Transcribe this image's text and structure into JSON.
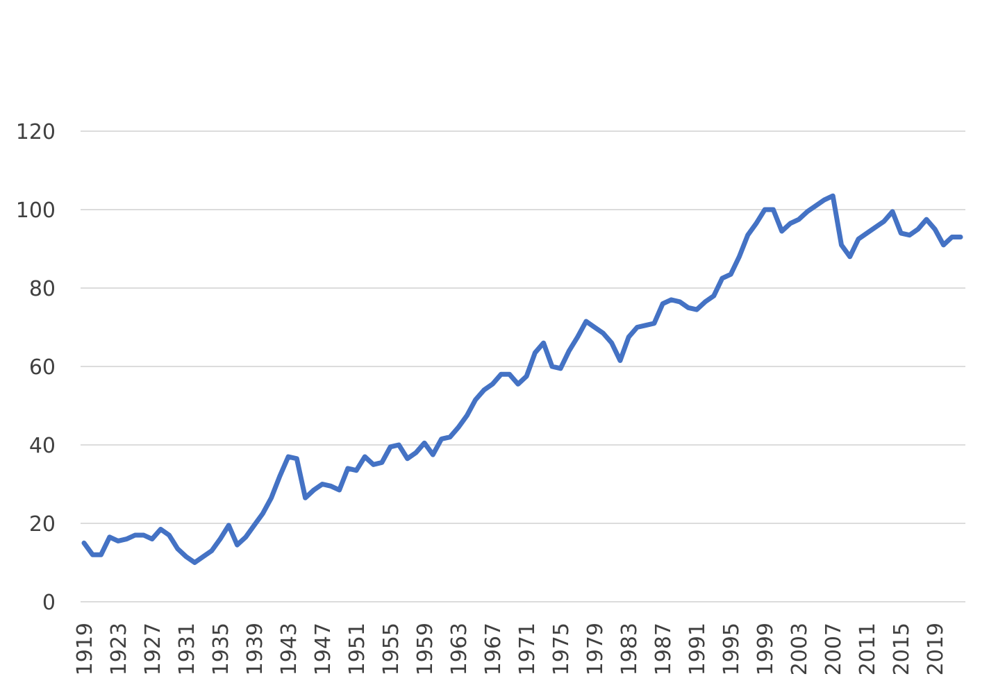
{
  "chart_data": {
    "type": "line",
    "title": "",
    "xlabel": "",
    "ylabel": "",
    "ylim": [
      0,
      120
    ],
    "yticks": [
      0,
      20,
      40,
      60,
      80,
      100,
      120
    ],
    "grid": true,
    "legend": "none",
    "colors": {
      "series": "#4472c4",
      "grid": "#c8c8c8",
      "text": "#404040"
    },
    "xtick_labels": [
      "1919",
      "1923",
      "1927",
      "1931",
      "1935",
      "1939",
      "1943",
      "1947",
      "1951",
      "1955",
      "1959",
      "1963",
      "1967",
      "1971",
      "1975",
      "1979",
      "1983",
      "1987",
      "1991",
      "1995",
      "1999",
      "2003",
      "2007",
      "2011",
      "2015",
      "2019"
    ],
    "x": [
      1919,
      1920,
      1921,
      1922,
      1923,
      1924,
      1925,
      1926,
      1927,
      1928,
      1929,
      1930,
      1931,
      1932,
      1933,
      1934,
      1935,
      1936,
      1937,
      1938,
      1939,
      1940,
      1941,
      1942,
      1943,
      1944,
      1945,
      1946,
      1947,
      1948,
      1949,
      1950,
      1951,
      1952,
      1953,
      1954,
      1955,
      1956,
      1957,
      1958,
      1959,
      1960,
      1961,
      1962,
      1963,
      1964,
      1965,
      1966,
      1967,
      1968,
      1969,
      1970,
      1971,
      1972,
      1973,
      1974,
      1975,
      1976,
      1977,
      1978,
      1979,
      1980,
      1981,
      1982,
      1983,
      1984,
      1985,
      1986,
      1987,
      1988,
      1989,
      1990,
      1991,
      1992,
      1993,
      1994,
      1995,
      1996,
      1997,
      1998,
      1999,
      2000,
      2001,
      2002,
      2003,
      2004,
      2005,
      2006,
      2007,
      2008,
      2009,
      2010,
      2011,
      2012,
      2013,
      2014,
      2015,
      2016,
      2017,
      2018,
      2019,
      2020,
      2021,
      2022
    ],
    "series": [
      {
        "values": [
          15,
          12,
          12,
          16.5,
          15.5,
          16,
          17,
          17,
          16,
          18.5,
          17,
          13.5,
          11.5,
          10,
          11.5,
          13,
          16,
          19.5,
          14.5,
          16.5,
          19.5,
          22.5,
          26.5,
          32,
          37,
          36.5,
          26.5,
          28.5,
          30,
          29.5,
          28.5,
          34,
          33.5,
          37,
          35,
          35.5,
          39.5,
          40,
          36.5,
          38,
          40.5,
          37.5,
          41.5,
          42,
          44.5,
          47.5,
          51.5,
          54,
          55.5,
          58,
          58,
          55.5,
          57.5,
          63.5,
          66,
          60,
          59.5,
          64,
          67.5,
          71.5,
          70,
          68.5,
          66,
          61.5,
          67.5,
          70,
          70.5,
          71,
          76,
          77,
          76.5,
          75,
          74.5,
          76.5,
          78,
          82.5,
          83.5,
          88,
          93.5,
          96.5,
          100,
          100,
          94.5,
          96.5,
          97.5,
          99.5,
          101,
          102.5,
          103.5,
          91,
          88,
          92.5,
          94,
          95.5,
          97,
          99.5,
          94,
          93.5,
          95,
          97.5,
          95,
          91,
          93,
          93
        ]
      }
    ]
  }
}
